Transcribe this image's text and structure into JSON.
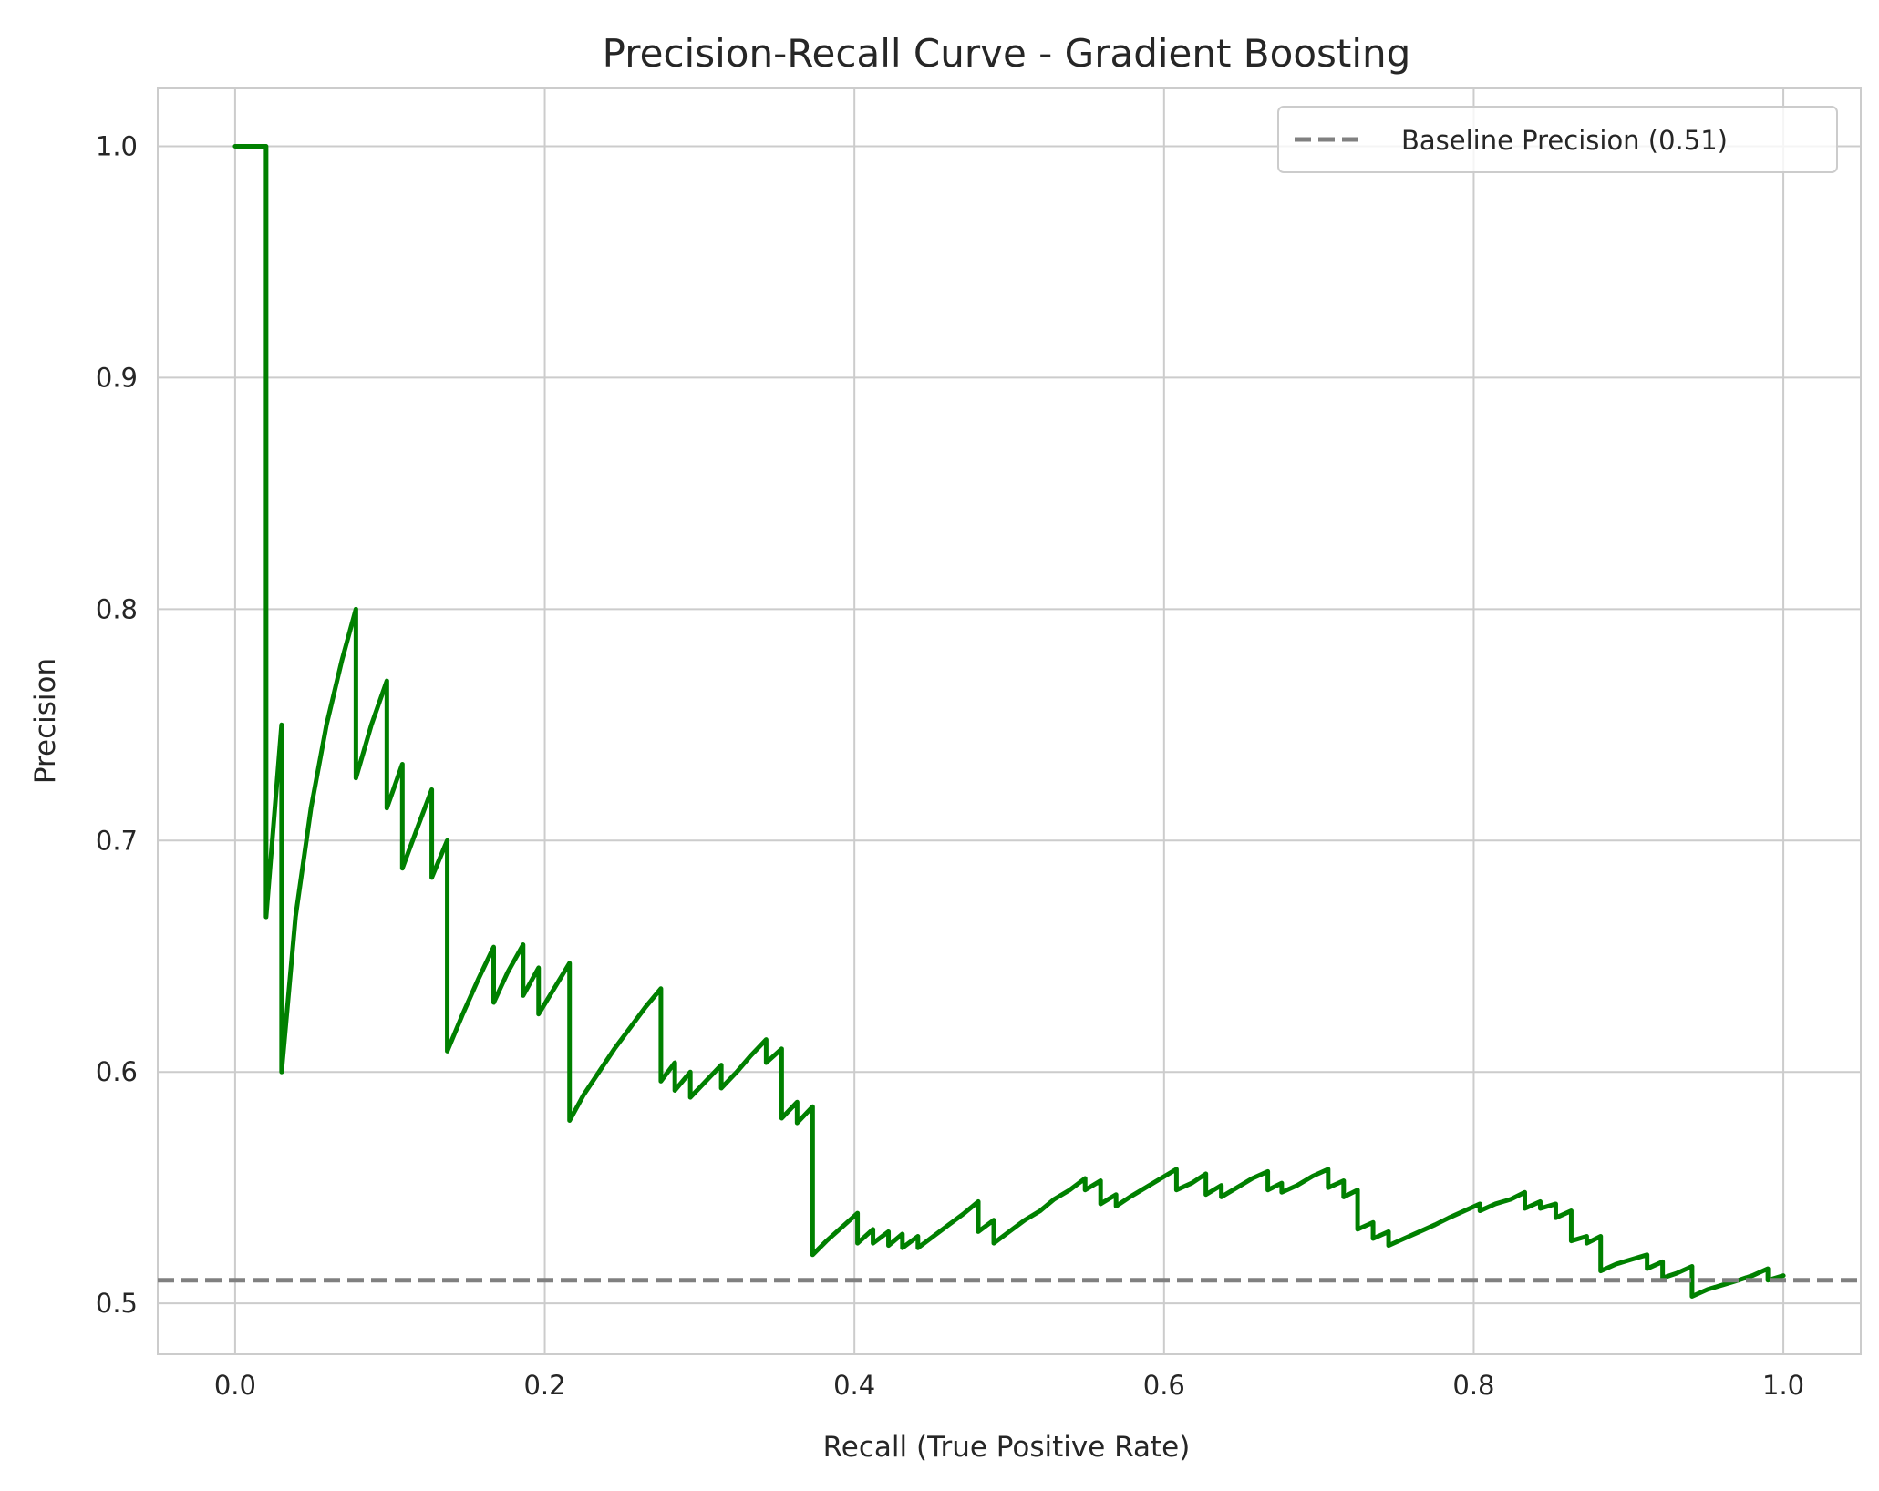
{
  "chart_data": {
    "type": "line",
    "title": "Precision-Recall Curve - Gradient Boosting",
    "xlabel": "Recall (True Positive Rate)",
    "ylabel": "Precision",
    "xlim": [
      -0.05,
      1.05
    ],
    "ylim": [
      0.478,
      1.025
    ],
    "xticks": [
      0.0,
      0.2,
      0.4,
      0.6,
      0.8,
      1.0
    ],
    "xtick_labels": [
      "0.0",
      "0.2",
      "0.4",
      "0.6",
      "0.8",
      "1.0"
    ],
    "yticks": [
      0.5,
      0.6,
      0.7,
      0.8,
      0.9,
      1.0
    ],
    "ytick_labels": [
      "0.5",
      "0.6",
      "0.7",
      "0.8",
      "0.9",
      "1.0"
    ],
    "grid": true,
    "legend_position": "top-right",
    "series": [
      {
        "color": "#008000",
        "style": "solid",
        "points": [
          [
            0.0,
            1.0
          ],
          [
            0.02,
            1.0
          ],
          [
            0.02,
            0.667
          ],
          [
            0.03,
            0.75
          ],
          [
            0.03,
            0.6
          ],
          [
            0.039,
            0.667
          ],
          [
            0.049,
            0.714
          ],
          [
            0.059,
            0.75
          ],
          [
            0.069,
            0.778
          ],
          [
            0.078,
            0.8
          ],
          [
            0.078,
            0.727
          ],
          [
            0.088,
            0.75
          ],
          [
            0.098,
            0.769
          ],
          [
            0.098,
            0.714
          ],
          [
            0.108,
            0.733
          ],
          [
            0.108,
            0.688
          ],
          [
            0.118,
            0.706
          ],
          [
            0.127,
            0.722
          ],
          [
            0.127,
            0.684
          ],
          [
            0.137,
            0.7
          ],
          [
            0.137,
            0.609
          ],
          [
            0.147,
            0.625
          ],
          [
            0.157,
            0.64
          ],
          [
            0.167,
            0.654
          ],
          [
            0.167,
            0.63
          ],
          [
            0.176,
            0.643
          ],
          [
            0.186,
            0.655
          ],
          [
            0.186,
            0.633
          ],
          [
            0.196,
            0.645
          ],
          [
            0.196,
            0.625
          ],
          [
            0.206,
            0.636
          ],
          [
            0.216,
            0.647
          ],
          [
            0.216,
            0.579
          ],
          [
            0.225,
            0.59
          ],
          [
            0.235,
            0.6
          ],
          [
            0.245,
            0.61
          ],
          [
            0.255,
            0.619
          ],
          [
            0.265,
            0.628
          ],
          [
            0.275,
            0.636
          ],
          [
            0.275,
            0.596
          ],
          [
            0.284,
            0.604
          ],
          [
            0.284,
            0.592
          ],
          [
            0.294,
            0.6
          ],
          [
            0.294,
            0.589
          ],
          [
            0.304,
            0.596
          ],
          [
            0.314,
            0.603
          ],
          [
            0.314,
            0.593
          ],
          [
            0.324,
            0.6
          ],
          [
            0.333,
            0.607
          ],
          [
            0.343,
            0.614
          ],
          [
            0.343,
            0.604
          ],
          [
            0.353,
            0.61
          ],
          [
            0.353,
            0.58
          ],
          [
            0.363,
            0.587
          ],
          [
            0.363,
            0.578
          ],
          [
            0.373,
            0.585
          ],
          [
            0.373,
            0.521
          ],
          [
            0.382,
            0.527
          ],
          [
            0.392,
            0.533
          ],
          [
            0.402,
            0.539
          ],
          [
            0.402,
            0.526
          ],
          [
            0.412,
            0.532
          ],
          [
            0.412,
            0.526
          ],
          [
            0.422,
            0.531
          ],
          [
            0.422,
            0.525
          ],
          [
            0.431,
            0.53
          ],
          [
            0.431,
            0.524
          ],
          [
            0.441,
            0.529
          ],
          [
            0.441,
            0.524
          ],
          [
            0.451,
            0.529
          ],
          [
            0.461,
            0.534
          ],
          [
            0.471,
            0.539
          ],
          [
            0.48,
            0.544
          ],
          [
            0.48,
            0.531
          ],
          [
            0.49,
            0.536
          ],
          [
            0.49,
            0.526
          ],
          [
            0.5,
            0.531
          ],
          [
            0.51,
            0.536
          ],
          [
            0.52,
            0.54
          ],
          [
            0.529,
            0.545
          ],
          [
            0.539,
            0.549
          ],
          [
            0.549,
            0.554
          ],
          [
            0.549,
            0.549
          ],
          [
            0.559,
            0.553
          ],
          [
            0.559,
            0.543
          ],
          [
            0.569,
            0.547
          ],
          [
            0.569,
            0.542
          ],
          [
            0.578,
            0.546
          ],
          [
            0.588,
            0.55
          ],
          [
            0.598,
            0.554
          ],
          [
            0.608,
            0.558
          ],
          [
            0.608,
            0.549
          ],
          [
            0.618,
            0.552
          ],
          [
            0.627,
            0.556
          ],
          [
            0.627,
            0.547
          ],
          [
            0.637,
            0.551
          ],
          [
            0.637,
            0.546
          ],
          [
            0.647,
            0.55
          ],
          [
            0.657,
            0.554
          ],
          [
            0.667,
            0.557
          ],
          [
            0.667,
            0.549
          ],
          [
            0.676,
            0.552
          ],
          [
            0.676,
            0.548
          ],
          [
            0.686,
            0.551
          ],
          [
            0.696,
            0.555
          ],
          [
            0.706,
            0.558
          ],
          [
            0.706,
            0.55
          ],
          [
            0.716,
            0.553
          ],
          [
            0.716,
            0.546
          ],
          [
            0.725,
            0.549
          ],
          [
            0.725,
            0.532
          ],
          [
            0.735,
            0.535
          ],
          [
            0.735,
            0.528
          ],
          [
            0.745,
            0.531
          ],
          [
            0.745,
            0.525
          ],
          [
            0.755,
            0.528
          ],
          [
            0.765,
            0.531
          ],
          [
            0.775,
            0.534
          ],
          [
            0.784,
            0.537
          ],
          [
            0.794,
            0.54
          ],
          [
            0.804,
            0.543
          ],
          [
            0.804,
            0.54
          ],
          [
            0.814,
            0.543
          ],
          [
            0.824,
            0.545
          ],
          [
            0.833,
            0.548
          ],
          [
            0.833,
            0.541
          ],
          [
            0.843,
            0.544
          ],
          [
            0.843,
            0.541
          ],
          [
            0.853,
            0.543
          ],
          [
            0.853,
            0.537
          ],
          [
            0.863,
            0.54
          ],
          [
            0.863,
            0.527
          ],
          [
            0.873,
            0.529
          ],
          [
            0.873,
            0.526
          ],
          [
            0.882,
            0.529
          ],
          [
            0.882,
            0.514
          ],
          [
            0.892,
            0.517
          ],
          [
            0.902,
            0.519
          ],
          [
            0.912,
            0.521
          ],
          [
            0.912,
            0.515
          ],
          [
            0.922,
            0.518
          ],
          [
            0.922,
            0.511
          ],
          [
            0.931,
            0.513
          ],
          [
            0.941,
            0.516
          ],
          [
            0.941,
            0.503
          ],
          [
            0.951,
            0.506
          ],
          [
            0.961,
            0.508
          ],
          [
            0.971,
            0.51
          ],
          [
            0.98,
            0.512
          ],
          [
            0.99,
            0.515
          ],
          [
            0.99,
            0.51
          ],
          [
            1.0,
            0.512
          ]
        ]
      },
      {
        "name": "Baseline Precision (0.51)",
        "color": "#808080",
        "style": "dashed",
        "y": 0.51
      }
    ]
  }
}
